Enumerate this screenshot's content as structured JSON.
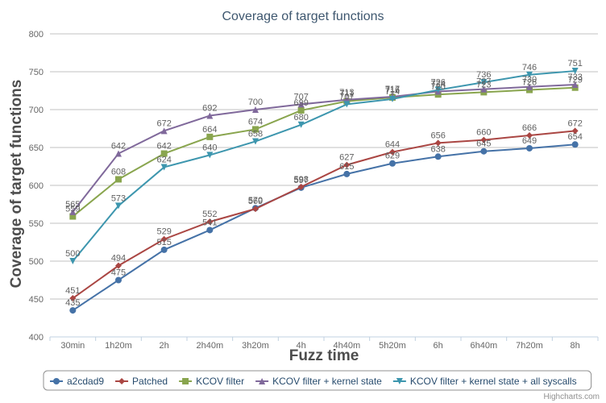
{
  "credits": "Highcharts.com",
  "chart_data": {
    "type": "line",
    "title": "Coverage of target functions",
    "xlabel": "Fuzz time",
    "ylabel": "Coverage of target functions",
    "categories": [
      "30min",
      "1h20m",
      "2h",
      "2h40m",
      "3h20m",
      "4h",
      "4h40m",
      "5h20m",
      "6h",
      "6h40m",
      "7h20m",
      "8h"
    ],
    "ylim": [
      400,
      800
    ],
    "yticks": [
      400,
      450,
      500,
      550,
      600,
      650,
      700,
      750,
      800
    ],
    "grid": true,
    "legend_position": "bottom",
    "series": [
      {
        "name": "a2cdad9",
        "color": "#4572A7",
        "marker": "circle",
        "values": [
          435,
          475,
          515,
          541,
          570,
          597,
          615,
          629,
          638,
          645,
          649,
          654
        ]
      },
      {
        "name": "Patched",
        "color": "#AA4643",
        "marker": "diamond",
        "values": [
          451,
          494,
          529,
          552,
          569,
          598,
          627,
          644,
          656,
          660,
          666,
          672
        ]
      },
      {
        "name": "KCOV filter",
        "color": "#89A54E",
        "marker": "square",
        "values": [
          559,
          608,
          642,
          664,
          674,
          699,
          711,
          716,
          720,
          723,
          726,
          729
        ]
      },
      {
        "name": "KCOV filter + kernel state",
        "color": "#80699B",
        "marker": "triangle",
        "values": [
          565,
          642,
          672,
          692,
          700,
          707,
          713,
          717,
          724,
          727,
          730,
          733
        ]
      },
      {
        "name": "KCOV filter + kernel state + all syscalls",
        "color": "#3D96AE",
        "marker": "triangle-down",
        "values": [
          500,
          573,
          624,
          640,
          658,
          680,
          707,
          714,
          726,
          736,
          746,
          751
        ]
      }
    ]
  }
}
